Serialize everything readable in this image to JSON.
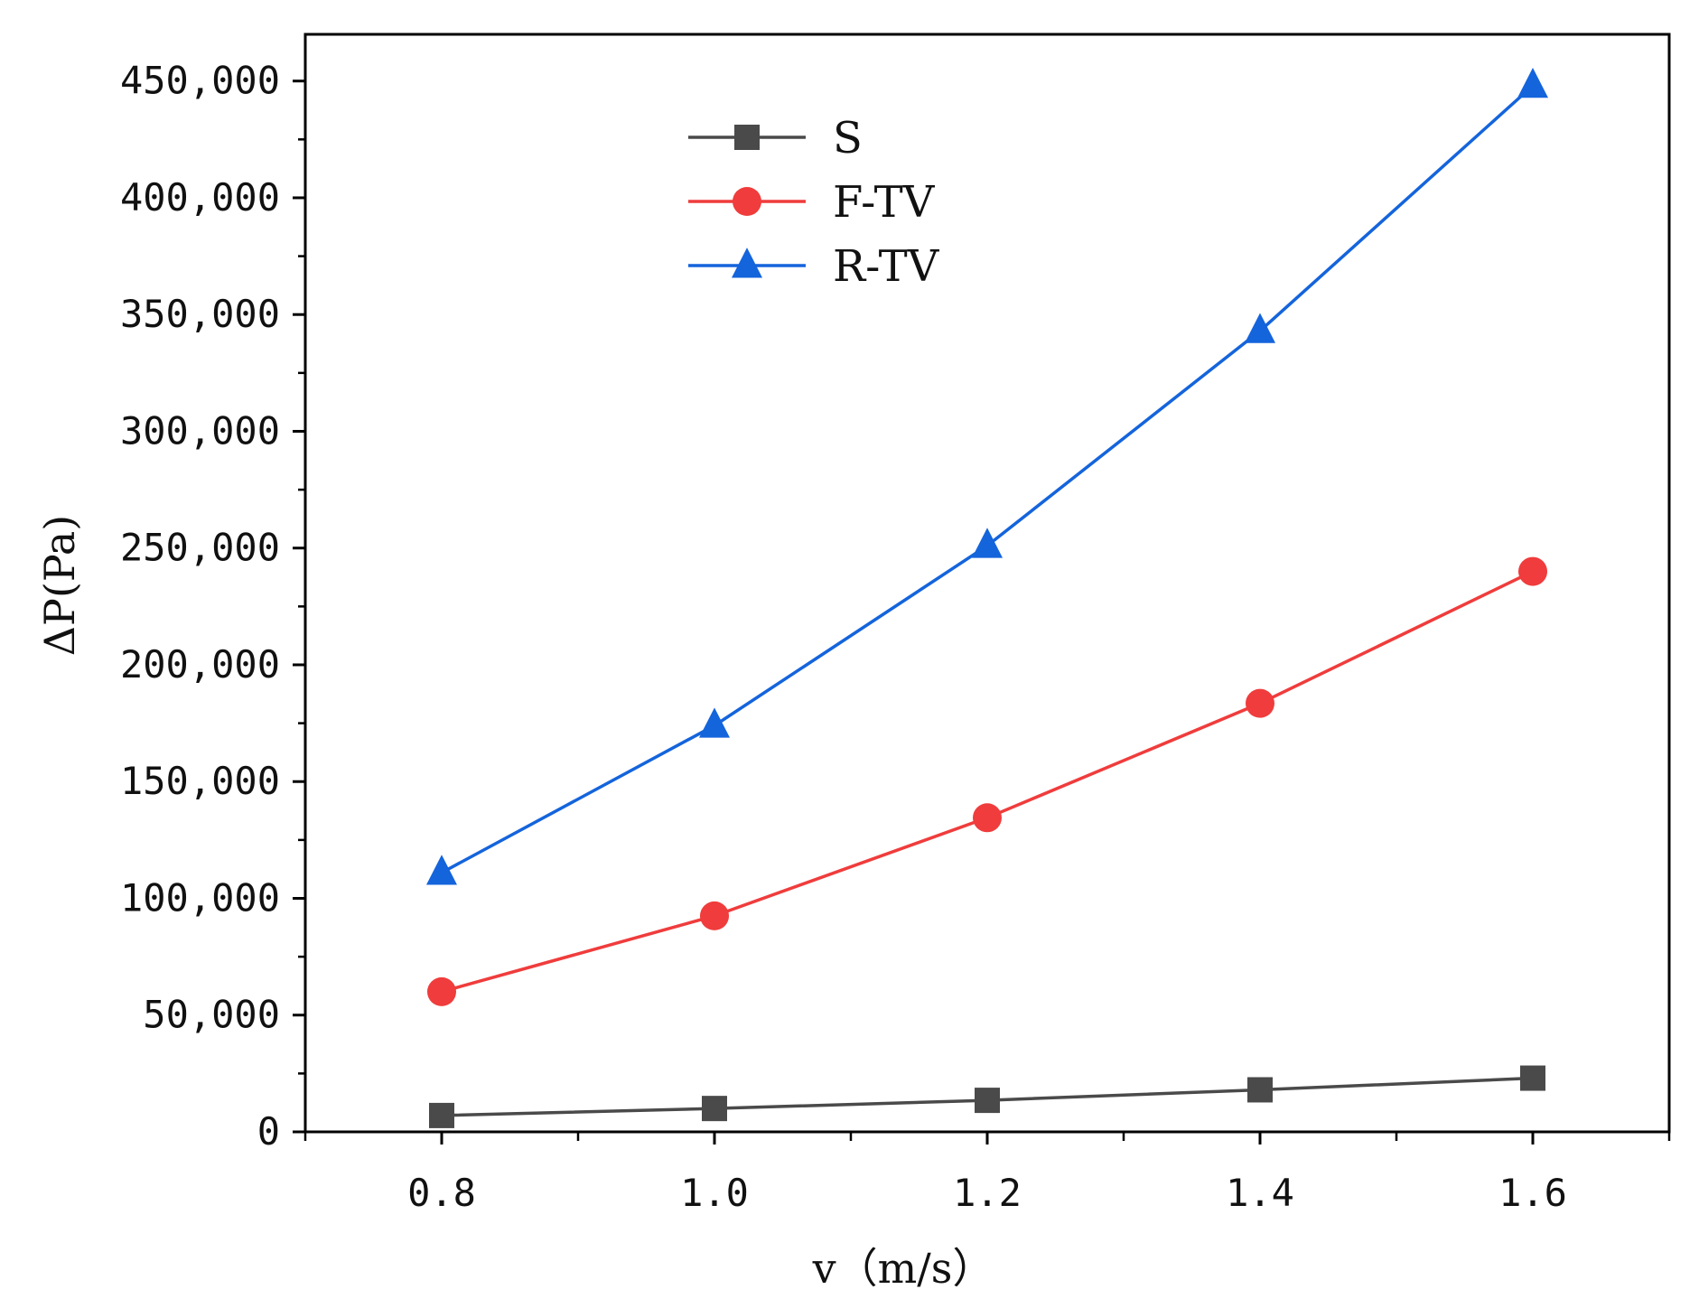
{
  "chart_data": {
    "type": "line",
    "title": "",
    "xlabel": "v（m/s）",
    "ylabel": "ΔP(Pa)",
    "x": [
      0.8,
      1.0,
      1.2,
      1.4,
      1.6
    ],
    "xlim": [
      0.7,
      1.7
    ],
    "ylim": [
      0,
      470000
    ],
    "x_ticks": [
      "0.8",
      "1.0",
      "1.2",
      "1.4",
      "1.6"
    ],
    "y_ticks": [
      "0",
      "50,000",
      "100,000",
      "150,000",
      "200,000",
      "250,000",
      "300,000",
      "350,000",
      "400,000",
      "450,000"
    ],
    "grid": false,
    "legend_position": "top-center",
    "series": [
      {
        "name": "S",
        "color": "#4a4a4a",
        "marker": "square",
        "values": [
          7000,
          10000,
          13500,
          18000,
          23000
        ]
      },
      {
        "name": "F-TV",
        "color": "#f03c3c",
        "marker": "circle",
        "values": [
          60000,
          92500,
          134500,
          183500,
          240000
        ]
      },
      {
        "name": "R-TV",
        "color": "#1464dc",
        "marker": "triangle",
        "values": [
          111000,
          174000,
          251000,
          343000,
          448000
        ]
      }
    ]
  }
}
